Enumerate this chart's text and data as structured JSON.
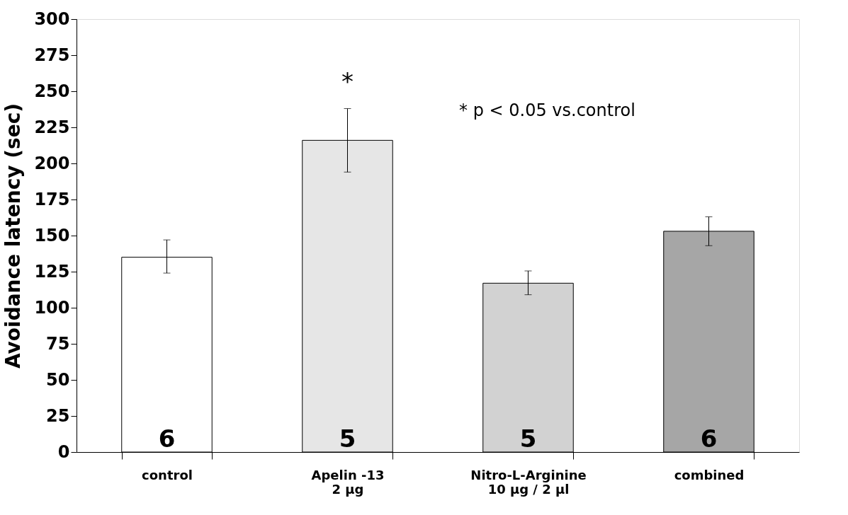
{
  "chart_data": {
    "type": "bar",
    "ylabel": "Avoidance latency  (sec)",
    "categories": [
      "control",
      "Apelin -13\n2 µg",
      "Nitro-L-Arginine\n10 µg / 2 µl",
      "combined"
    ],
    "values": [
      135,
      216,
      117,
      153
    ],
    "colors": [
      "#ffffff",
      "#e6e6e6",
      "#d2d2d2",
      "#a6a6a6"
    ],
    "errors": [
      [
        124,
        147
      ],
      [
        194,
        238
      ],
      [
        109,
        125.5
      ],
      [
        143,
        163
      ]
    ],
    "ylim": [
      0,
      300
    ],
    "yticks": [
      0,
      25,
      50,
      75,
      100,
      125,
      150,
      175,
      200,
      225,
      250,
      275,
      300
    ],
    "grid": false,
    "annotations": [
      "6",
      "5",
      "5",
      "6",
      "*",
      "* p < 0.05 vs.control"
    ]
  }
}
